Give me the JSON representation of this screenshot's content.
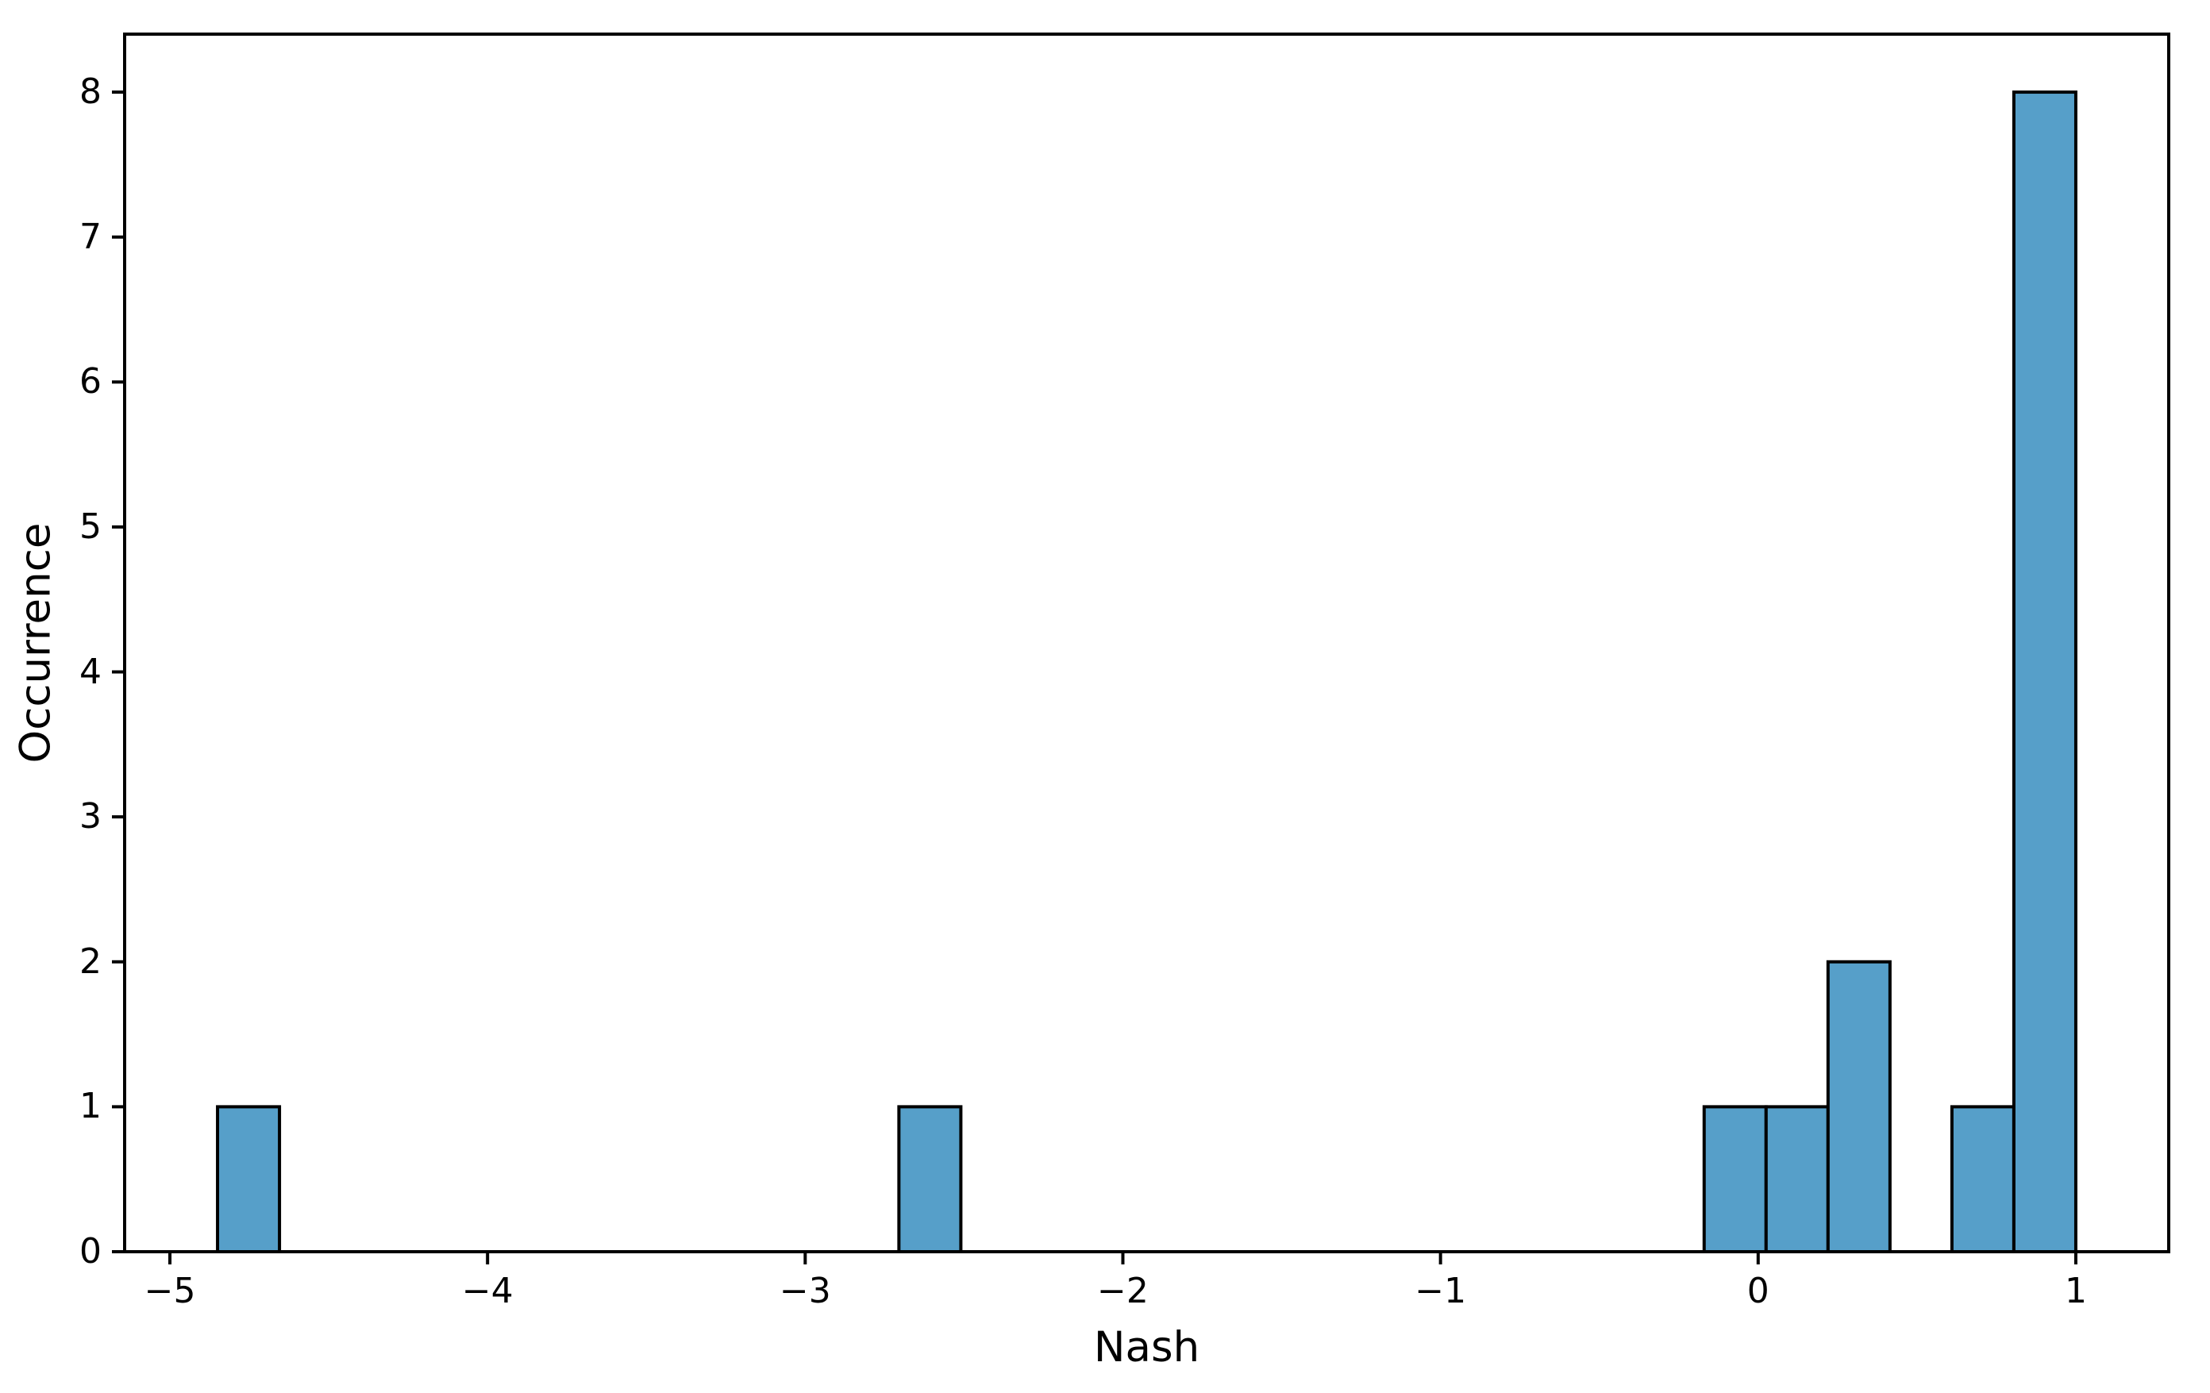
{
  "chart_data": {
    "type": "bar",
    "subtype": "histogram",
    "title": "",
    "xlabel": "Nash",
    "ylabel": "Occurrence",
    "xlim": [
      -5.1425,
      1.2925
    ],
    "ylim": [
      0,
      8.4
    ],
    "x_ticks": {
      "values": [
        -5,
        -4,
        -3,
        -2,
        -1,
        0,
        1
      ],
      "labels": [
        "−5",
        "−4",
        "−3",
        "−2",
        "−1",
        "0",
        "1"
      ]
    },
    "y_ticks": {
      "values": [
        0,
        1,
        2,
        3,
        4,
        5,
        6,
        7,
        8
      ],
      "labels": [
        "0",
        "1",
        "2",
        "3",
        "4",
        "5",
        "6",
        "7",
        "8"
      ]
    },
    "bin_width": 0.195,
    "bars": [
      {
        "x0": -4.85,
        "x1": -4.655,
        "count": 1
      },
      {
        "x0": -2.705,
        "x1": -2.51,
        "count": 1
      },
      {
        "x0": -0.17,
        "x1": 0.025,
        "count": 1
      },
      {
        "x0": 0.025,
        "x1": 0.22,
        "count": 1
      },
      {
        "x0": 0.22,
        "x1": 0.415,
        "count": 2
      },
      {
        "x0": 0.61,
        "x1": 0.805,
        "count": 1
      },
      {
        "x0": 0.805,
        "x1": 1.0,
        "count": 8
      }
    ],
    "grid": false,
    "colors": {
      "background": "#ffffff",
      "bar_fill": "#569fc9",
      "bar_edge": "#000000",
      "axis": "#000000",
      "text": "#000000"
    }
  }
}
